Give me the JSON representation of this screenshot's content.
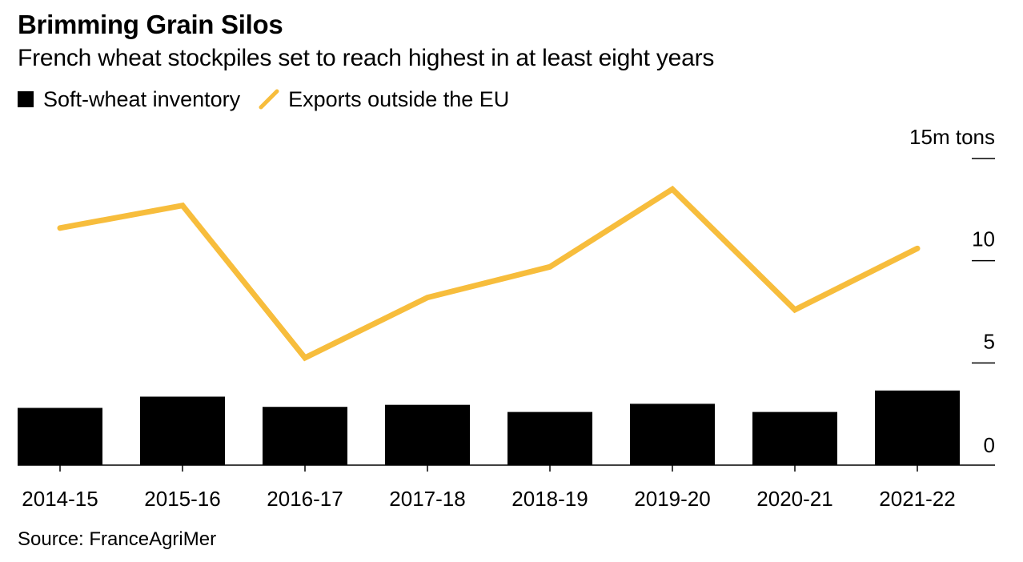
{
  "title": "Brimming Grain Silos",
  "subtitle": "French wheat stockpiles set to reach highest in at least eight years",
  "source": "Source: FranceAgriMer",
  "colors": {
    "bar": "#000000",
    "line": "#F7BD3C",
    "axis": "#000000"
  },
  "chart_data": {
    "type": "bar",
    "title": "Brimming Grain Silos",
    "subtitle": "French wheat stockpiles set to reach highest in at least eight years",
    "categories": [
      "2014-15",
      "2015-16",
      "2016-17",
      "2017-18",
      "2018-19",
      "2019-20",
      "2020-21",
      "2021-22"
    ],
    "series": [
      {
        "name": "Soft-wheat inventory",
        "type": "bar",
        "values": [
          2.8,
          3.35,
          2.85,
          2.95,
          2.6,
          3.0,
          2.6,
          3.65
        ]
      },
      {
        "name": "Exports outside the EU",
        "type": "line",
        "values": [
          11.6,
          12.7,
          5.25,
          8.2,
          9.7,
          13.5,
          7.6,
          10.6
        ]
      }
    ],
    "ylim": [
      0,
      15
    ],
    "y_ticks": [
      "0",
      "5",
      "10",
      "15m tons"
    ],
    "y_tick_values": [
      0,
      5,
      10,
      15
    ],
    "y_axis_position": "right",
    "grid": false,
    "legend_position": "top-left"
  }
}
